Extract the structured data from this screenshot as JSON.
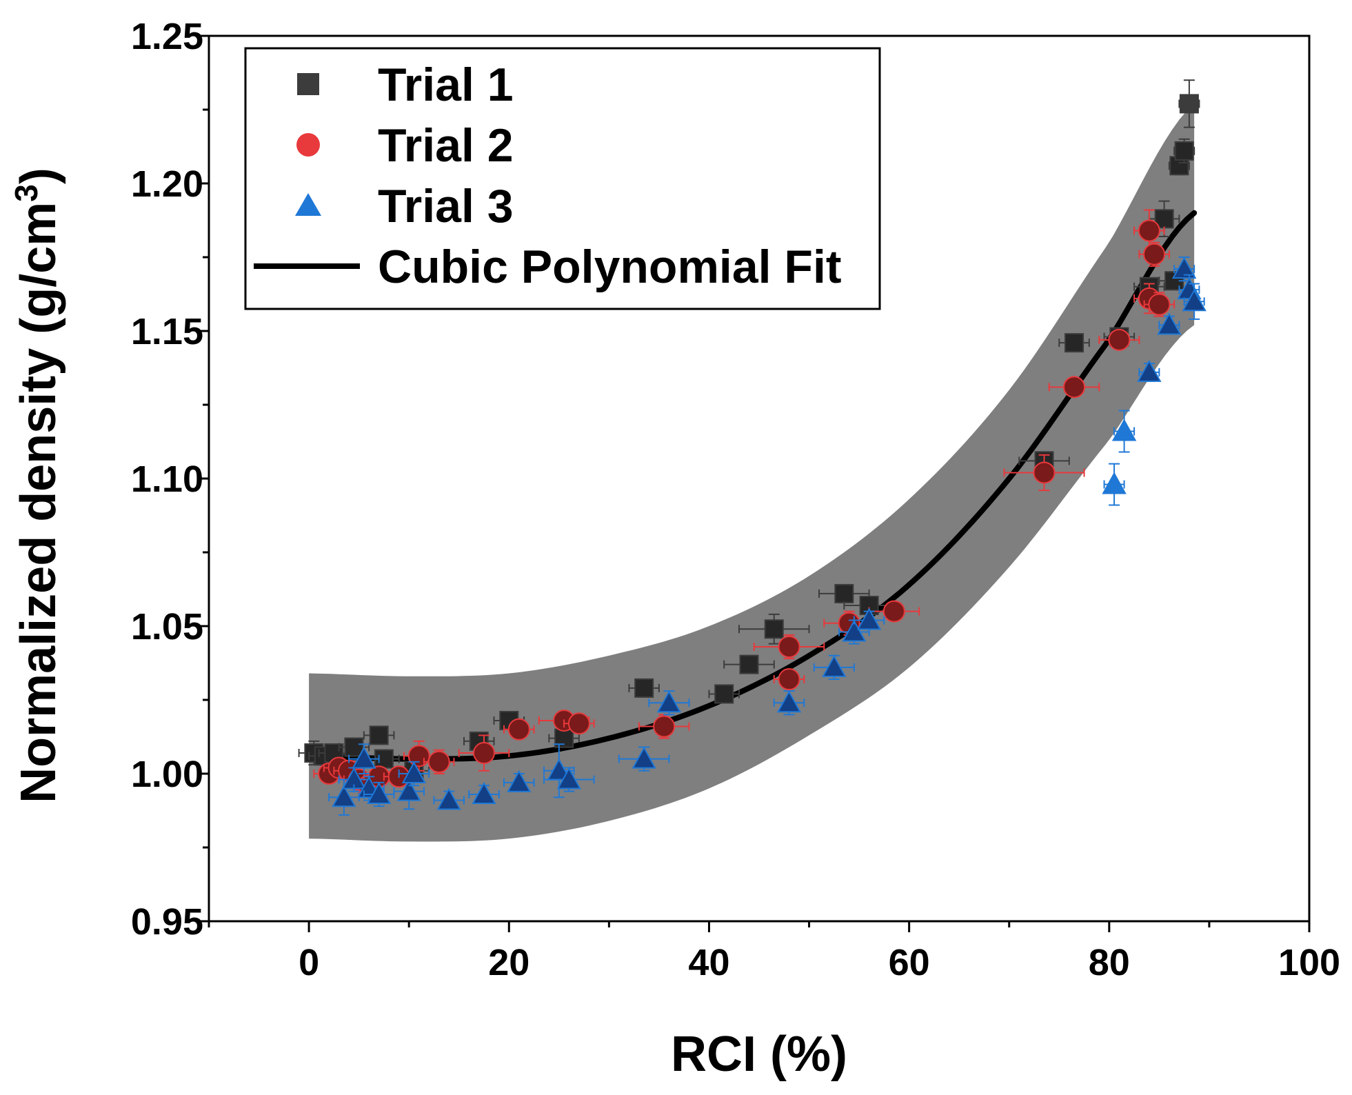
{
  "chart_data": {
    "type": "scatter",
    "title": "",
    "xlabel": "RCI (%)",
    "ylabel": "Normalized density (g/cm",
    "ylabel_sup": "3",
    "ylabel_close": ")",
    "xlim": [
      -10,
      100
    ],
    "ylim": [
      0.95,
      1.25
    ],
    "x_ticks": [
      0,
      20,
      40,
      60,
      80,
      100
    ],
    "x_tick_labels": [
      "0",
      "20",
      "40",
      "60",
      "80",
      "100"
    ],
    "y_ticks": [
      0.95,
      1.0,
      1.05,
      1.1,
      1.15,
      1.2,
      1.25
    ],
    "y_tick_labels": [
      "0.95",
      "1.00",
      "1.05",
      "1.10",
      "1.15",
      "1.20",
      "1.25"
    ],
    "grid": false,
    "legend_position": "top-left",
    "colors": {
      "trial1": "#3c3c3c",
      "trial2": "#e8393c",
      "trial3": "#1f78d6",
      "fit": "#000000",
      "band": "#7f7f7f",
      "overlap": "#7a1a1a"
    },
    "fit": {
      "name": "Cubic Polynomial Fit",
      "x_range": [
        0,
        88.5
      ],
      "x": [
        0,
        10,
        20,
        30,
        40,
        50,
        60,
        70,
        80,
        88.5
      ],
      "y": [
        1.006,
        1.005,
        1.006,
        1.012,
        1.023,
        1.04,
        1.064,
        1.1,
        1.147,
        1.19
      ],
      "band_upper": [
        1.034,
        1.033,
        1.034,
        1.04,
        1.05,
        1.067,
        1.093,
        1.13,
        1.18,
        1.227
      ],
      "band_lower": [
        0.978,
        0.977,
        0.978,
        0.984,
        0.995,
        1.013,
        1.036,
        1.07,
        1.113,
        1.152
      ]
    },
    "series": [
      {
        "name": "Trial 1",
        "marker": "square",
        "points": [
          [
            0.5,
            1.007,
            1.5,
            0.004
          ],
          [
            1.5,
            1.006,
            1.5,
            0.003
          ],
          [
            2.5,
            1.007,
            1.5,
            0.003
          ],
          [
            4.5,
            1.009,
            1.5,
            0.003
          ],
          [
            7,
            1.013,
            1.5,
            0.003
          ],
          [
            7.5,
            1.005,
            1.5,
            0.003
          ],
          [
            10.5,
            1.001,
            1.5,
            0.003
          ],
          [
            17,
            1.011,
            1.5,
            0.003
          ],
          [
            20,
            1.018,
            1.5,
            0.003
          ],
          [
            25.5,
            1.012,
            1.5,
            0.003
          ],
          [
            33.5,
            1.029,
            1.5,
            0.003
          ],
          [
            41.5,
            1.027,
            1.5,
            0.003
          ],
          [
            44,
            1.037,
            2.5,
            0.003
          ],
          [
            46.5,
            1.049,
            3.5,
            0.005
          ],
          [
            53.5,
            1.061,
            2.5,
            0.003
          ],
          [
            56,
            1.057,
            2.5,
            0.003
          ],
          [
            73.5,
            1.106,
            2.5,
            0.003
          ],
          [
            76.5,
            1.146,
            1.5,
            0.003
          ],
          [
            81,
            1.148,
            1.5,
            0.003
          ],
          [
            84,
            1.165,
            1.5,
            0.003
          ],
          [
            85.5,
            1.188,
            1.5,
            0.006
          ],
          [
            86.5,
            1.167,
            1.5,
            0.003
          ],
          [
            87,
            1.206,
            1,
            0.003
          ],
          [
            87.5,
            1.211,
            1,
            0.004
          ],
          [
            88,
            1.227,
            1,
            0.008
          ]
        ]
      },
      {
        "name": "Trial 2",
        "marker": "circle",
        "points": [
          [
            2,
            1.0,
            1.5,
            0.003
          ],
          [
            3,
            1.002,
            1.5,
            0.003
          ],
          [
            4,
            1.001,
            1.5,
            0.003
          ],
          [
            5,
            0.998,
            1.5,
            0.006
          ],
          [
            6,
            0.996,
            1.5,
            0.003
          ],
          [
            7,
            0.999,
            1.5,
            0.003
          ],
          [
            9,
            0.999,
            1.5,
            0.003
          ],
          [
            11,
            1.006,
            1.5,
            0.005
          ],
          [
            13,
            1.004,
            1.5,
            0.004
          ],
          [
            17.5,
            1.007,
            2.5,
            0.006
          ],
          [
            21,
            1.015,
            1.5,
            0.003
          ],
          [
            25.5,
            1.018,
            2.5,
            0.003
          ],
          [
            27,
            1.017,
            1.5,
            0.003
          ],
          [
            35.5,
            1.016,
            2.5,
            0.004
          ],
          [
            48,
            1.032,
            1.5,
            0.003
          ],
          [
            48,
            1.043,
            3.5,
            0.004
          ],
          [
            54,
            1.051,
            2.5,
            0.004
          ],
          [
            58.5,
            1.055,
            2.5,
            0.003
          ],
          [
            73.5,
            1.102,
            4,
            0.006
          ],
          [
            76.5,
            1.131,
            2.5,
            0.003
          ],
          [
            81,
            1.147,
            2,
            0.003
          ],
          [
            84,
            1.161,
            1.5,
            0.005
          ],
          [
            84,
            1.184,
            1.5,
            0.007
          ],
          [
            84.5,
            1.176,
            1.5,
            0.004
          ],
          [
            85,
            1.159,
            1.5,
            0.004
          ]
        ]
      },
      {
        "name": "Trial 3",
        "marker": "triangle",
        "points": [
          [
            3.5,
            0.992,
            1.5,
            0.006
          ],
          [
            4.5,
            0.998,
            1.5,
            0.004
          ],
          [
            5.5,
            1.005,
            1.5,
            0.005
          ],
          [
            6,
            0.995,
            1.5,
            0.004
          ],
          [
            7,
            0.993,
            1.5,
            0.004
          ],
          [
            10,
            0.994,
            1.5,
            0.006
          ],
          [
            10.5,
            1.0,
            1.5,
            0.004
          ],
          [
            14,
            0.991,
            1.5,
            0.003
          ],
          [
            17.5,
            0.993,
            1.5,
            0.003
          ],
          [
            21,
            0.997,
            1.5,
            0.003
          ],
          [
            25,
            1.001,
            1.5,
            0.009
          ],
          [
            26,
            0.998,
            2.5,
            0.004
          ],
          [
            33.5,
            1.005,
            2.5,
            0.004
          ],
          [
            36,
            1.024,
            2,
            0.004
          ],
          [
            48,
            1.024,
            1.5,
            0.004
          ],
          [
            52.5,
            1.036,
            2,
            0.004
          ],
          [
            54.5,
            1.048,
            1.5,
            0.004
          ],
          [
            56,
            1.052,
            1.5,
            0.003
          ],
          [
            80.5,
            1.098,
            1,
            0.007
          ],
          [
            81.5,
            1.116,
            1,
            0.007
          ],
          [
            84,
            1.136,
            1,
            0.003
          ],
          [
            86,
            1.152,
            1,
            0.003
          ],
          [
            87.5,
            1.171,
            1,
            0.004
          ],
          [
            88,
            1.164,
            1,
            0.005
          ],
          [
            88.5,
            1.16,
            1,
            0.006
          ]
        ]
      }
    ]
  }
}
